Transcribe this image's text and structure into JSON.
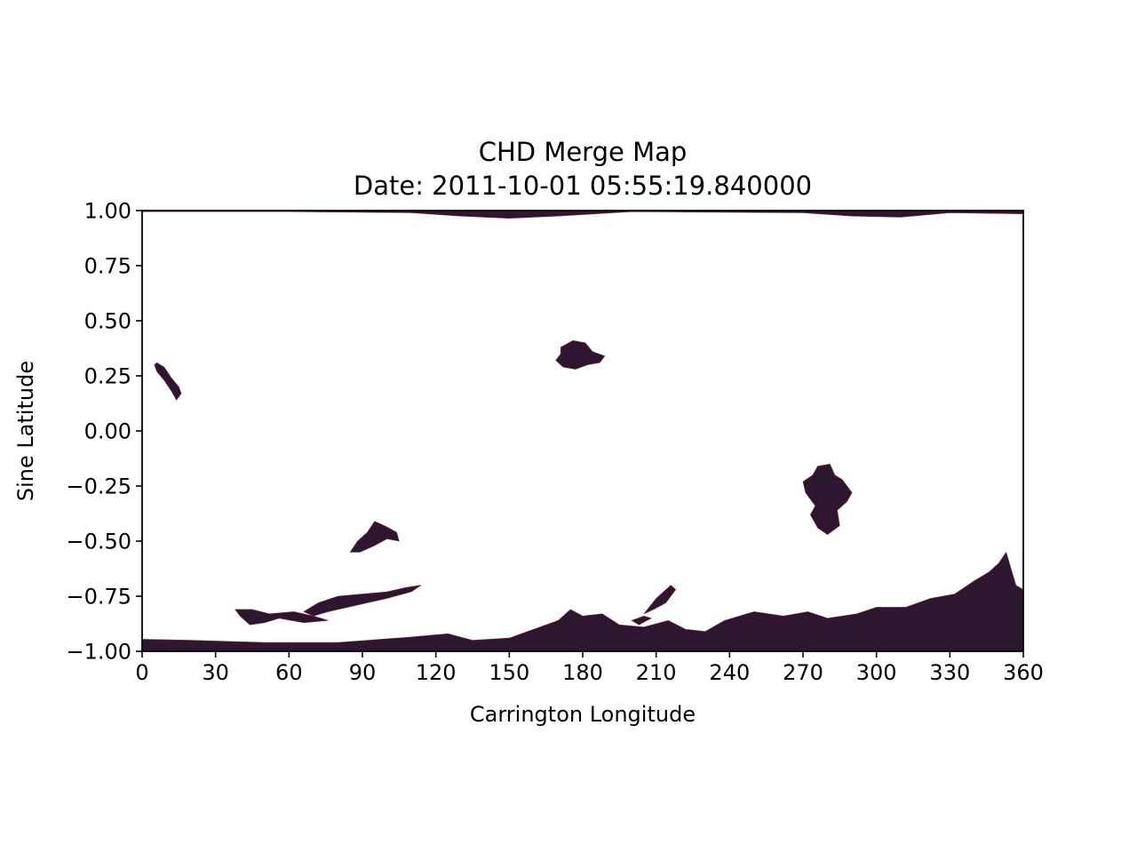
{
  "chart_data": {
    "type": "heatmap",
    "title": "CHD Merge Map",
    "subtitle": "Date: 2011-10-01 05:55:19.840000",
    "xlabel": "Carrington Longitude",
    "ylabel": "Sine Latitude",
    "xlim": [
      0,
      360
    ],
    "ylim": [
      -1.0,
      1.0
    ],
    "xticks": [
      0,
      30,
      60,
      90,
      120,
      150,
      180,
      210,
      240,
      270,
      300,
      330,
      360
    ],
    "xtick_labels": [
      "0",
      "30",
      "60",
      "90",
      "120",
      "150",
      "180",
      "210",
      "240",
      "270",
      "300",
      "330",
      "360"
    ],
    "yticks": [
      1.0,
      0.75,
      0.5,
      0.25,
      0.0,
      -0.25,
      -0.5,
      -0.75,
      -1.0
    ],
    "ytick_labels": [
      "1.00",
      "0.75",
      "0.50",
      "0.25",
      "0.00",
      "−0.25",
      "−0.50",
      "−0.75",
      "−1.00"
    ],
    "grid": false,
    "colors": {
      "region": "#2e1530",
      "highlight": "#7a2e3e",
      "background": "#ffffff"
    },
    "regions": [
      {
        "name": "north-polar-hole",
        "points": [
          [
            0,
            1.0
          ],
          [
            360,
            1.0
          ],
          [
            360,
            0.985
          ],
          [
            330,
            0.99
          ],
          [
            310,
            0.97
          ],
          [
            290,
            0.975
          ],
          [
            270,
            0.99
          ],
          [
            200,
            0.995
          ],
          [
            170,
            0.975
          ],
          [
            150,
            0.965
          ],
          [
            130,
            0.975
          ],
          [
            110,
            0.99
          ],
          [
            60,
            0.995
          ],
          [
            0,
            0.995
          ]
        ]
      },
      {
        "name": "hole-north-east-limb",
        "points": [
          [
            6,
            0.31
          ],
          [
            9,
            0.29
          ],
          [
            12,
            0.24
          ],
          [
            15,
            0.2
          ],
          [
            16,
            0.17
          ],
          [
            14,
            0.14
          ],
          [
            12,
            0.18
          ],
          [
            9,
            0.23
          ],
          [
            6,
            0.27
          ],
          [
            5,
            0.3
          ]
        ]
      },
      {
        "name": "hole-north-central",
        "points": [
          [
            171,
            0.38
          ],
          [
            176,
            0.41
          ],
          [
            181,
            0.4
          ],
          [
            184,
            0.36
          ],
          [
            189,
            0.34
          ],
          [
            187,
            0.31
          ],
          [
            182,
            0.3
          ],
          [
            177,
            0.28
          ],
          [
            172,
            0.29
          ],
          [
            169,
            0.32
          ],
          [
            171,
            0.35
          ]
        ]
      },
      {
        "name": "hole-south-equatorial-270",
        "points": [
          [
            276,
            -0.16
          ],
          [
            281,
            -0.15
          ],
          [
            283,
            -0.2
          ],
          [
            286,
            -0.22
          ],
          [
            290,
            -0.28
          ],
          [
            288,
            -0.32
          ],
          [
            284,
            -0.36
          ],
          [
            285,
            -0.43
          ],
          [
            280,
            -0.47
          ],
          [
            276,
            -0.44
          ],
          [
            273,
            -0.38
          ],
          [
            275,
            -0.34
          ],
          [
            271,
            -0.28
          ],
          [
            270,
            -0.23
          ],
          [
            274,
            -0.2
          ]
        ]
      },
      {
        "name": "hole-south-90",
        "points": [
          [
            85,
            -0.55
          ],
          [
            88,
            -0.5
          ],
          [
            92,
            -0.46
          ],
          [
            95,
            -0.41
          ],
          [
            99,
            -0.43
          ],
          [
            104,
            -0.46
          ],
          [
            105,
            -0.5
          ],
          [
            100,
            -0.49
          ],
          [
            95,
            -0.52
          ],
          [
            89,
            -0.55
          ]
        ]
      },
      {
        "name": "hole-south-70-115",
        "points": [
          [
            66,
            -0.82
          ],
          [
            72,
            -0.78
          ],
          [
            80,
            -0.75
          ],
          [
            90,
            -0.74
          ],
          [
            100,
            -0.73
          ],
          [
            108,
            -0.71
          ],
          [
            114,
            -0.7
          ],
          [
            110,
            -0.73
          ],
          [
            100,
            -0.76
          ],
          [
            92,
            -0.78
          ],
          [
            84,
            -0.8
          ],
          [
            76,
            -0.82
          ],
          [
            70,
            -0.84
          ]
        ]
      },
      {
        "name": "hole-south-40-70",
        "points": [
          [
            38,
            -0.81
          ],
          [
            45,
            -0.81
          ],
          [
            52,
            -0.83
          ],
          [
            62,
            -0.82
          ],
          [
            70,
            -0.84
          ],
          [
            76,
            -0.86
          ],
          [
            66,
            -0.87
          ],
          [
            56,
            -0.85
          ],
          [
            50,
            -0.87
          ],
          [
            44,
            -0.88
          ],
          [
            40,
            -0.84
          ]
        ]
      },
      {
        "name": "hole-south-210",
        "points": [
          [
            205,
            -0.83
          ],
          [
            210,
            -0.76
          ],
          [
            216,
            -0.7
          ],
          [
            218,
            -0.72
          ],
          [
            214,
            -0.78
          ],
          [
            209,
            -0.81
          ]
        ]
      },
      {
        "name": "hole-south-200",
        "points": [
          [
            200,
            -0.86
          ],
          [
            205,
            -0.84
          ],
          [
            208,
            -0.85
          ],
          [
            203,
            -0.88
          ]
        ]
      },
      {
        "name": "south-polar-hole",
        "points": [
          [
            0,
            -0.945
          ],
          [
            20,
            -0.95
          ],
          [
            50,
            -0.96
          ],
          [
            80,
            -0.96
          ],
          [
            110,
            -0.935
          ],
          [
            125,
            -0.92
          ],
          [
            135,
            -0.95
          ],
          [
            150,
            -0.94
          ],
          [
            160,
            -0.9
          ],
          [
            170,
            -0.86
          ],
          [
            175,
            -0.81
          ],
          [
            180,
            -0.84
          ],
          [
            188,
            -0.83
          ],
          [
            195,
            -0.88
          ],
          [
            205,
            -0.89
          ],
          [
            215,
            -0.86
          ],
          [
            222,
            -0.9
          ],
          [
            230,
            -0.91
          ],
          [
            238,
            -0.86
          ],
          [
            250,
            -0.82
          ],
          [
            262,
            -0.84
          ],
          [
            272,
            -0.82
          ],
          [
            280,
            -0.85
          ],
          [
            292,
            -0.83
          ],
          [
            300,
            -0.8
          ],
          [
            312,
            -0.8
          ],
          [
            322,
            -0.76
          ],
          [
            332,
            -0.74
          ],
          [
            340,
            -0.68
          ],
          [
            346,
            -0.64
          ],
          [
            350,
            -0.6
          ],
          [
            353,
            -0.55
          ],
          [
            357,
            -0.7
          ],
          [
            360,
            -0.72
          ],
          [
            360,
            -1.0
          ],
          [
            0,
            -1.0
          ]
        ]
      }
    ]
  }
}
